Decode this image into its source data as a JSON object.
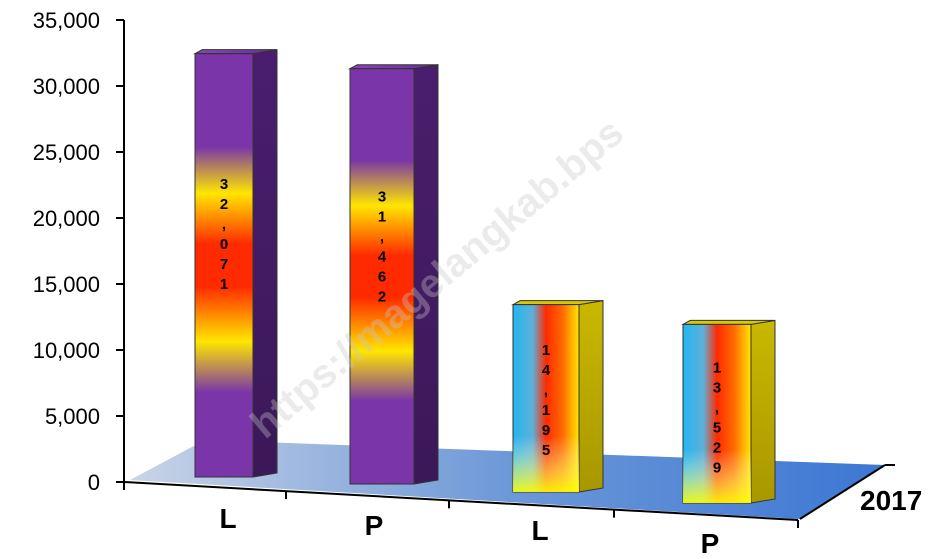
{
  "chart_data": {
    "type": "bar",
    "categories": [
      "L",
      "P",
      "L",
      "P"
    ],
    "values": [
      32071,
      31462,
      14195,
      13529
    ],
    "value_labels": [
      "32,071",
      "31,462",
      "14,195",
      "13,529"
    ],
    "group_label": "2017",
    "ylim": [
      0,
      35000
    ],
    "yticks": [
      "0",
      "5,000",
      "10,000",
      "15,000",
      "20,000",
      "25,000",
      "30,000",
      "35,000"
    ],
    "title": "",
    "xlabel": "",
    "ylabel": "",
    "watermark": "https://magelangkab.bps"
  }
}
